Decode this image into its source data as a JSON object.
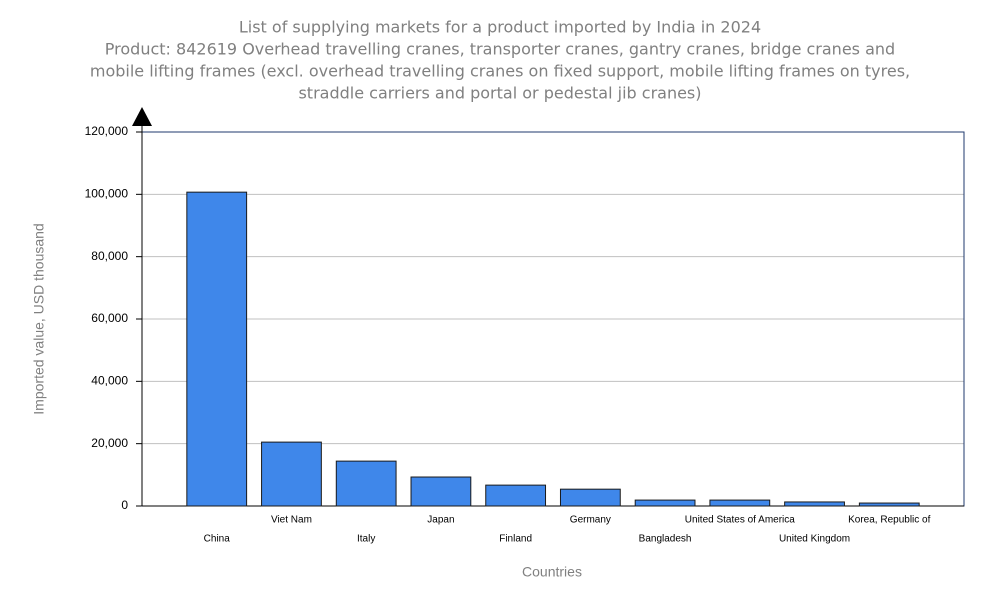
{
  "chart_data": {
    "type": "bar",
    "title": [
      "List of supplying markets for a product imported by India in 2024",
      "Product: 842619 Overhead travelling cranes, transporter cranes, gantry cranes, bridge cranes and",
      "mobile lifting frames (excl. overhead travelling cranes on fixed support, mobile lifting frames on tyres,",
      "straddle carriers and portal or pedestal jib cranes)"
    ],
    "y_label": "Imported value, USD thousand",
    "x_label": "Countries",
    "categories": [
      "China",
      "Viet Nam",
      "Italy",
      "Japan",
      "Finland",
      "Germany",
      "Bangladesh",
      "United States of America",
      "United Kingdom",
      "Korea, Republic of"
    ],
    "values": [
      100700,
      20500,
      14400,
      9300,
      6700,
      5400,
      1900,
      1900,
      1300,
      950
    ],
    "color": "#3f87ea",
    "ylim": [
      0,
      120000
    ],
    "yticks": [
      0,
      {
        "value": 20000,
        "label": "20,000"
      },
      {
        "value": 40000,
        "label": "40,000"
      },
      {
        "value": 60000,
        "label": "60,000"
      },
      {
        "value": 80000,
        "label": "80,000"
      },
      {
        "value": 100000,
        "label": "100,000"
      },
      {
        "value": 120000,
        "label": "120,000"
      }
    ],
    "grid": true
  }
}
